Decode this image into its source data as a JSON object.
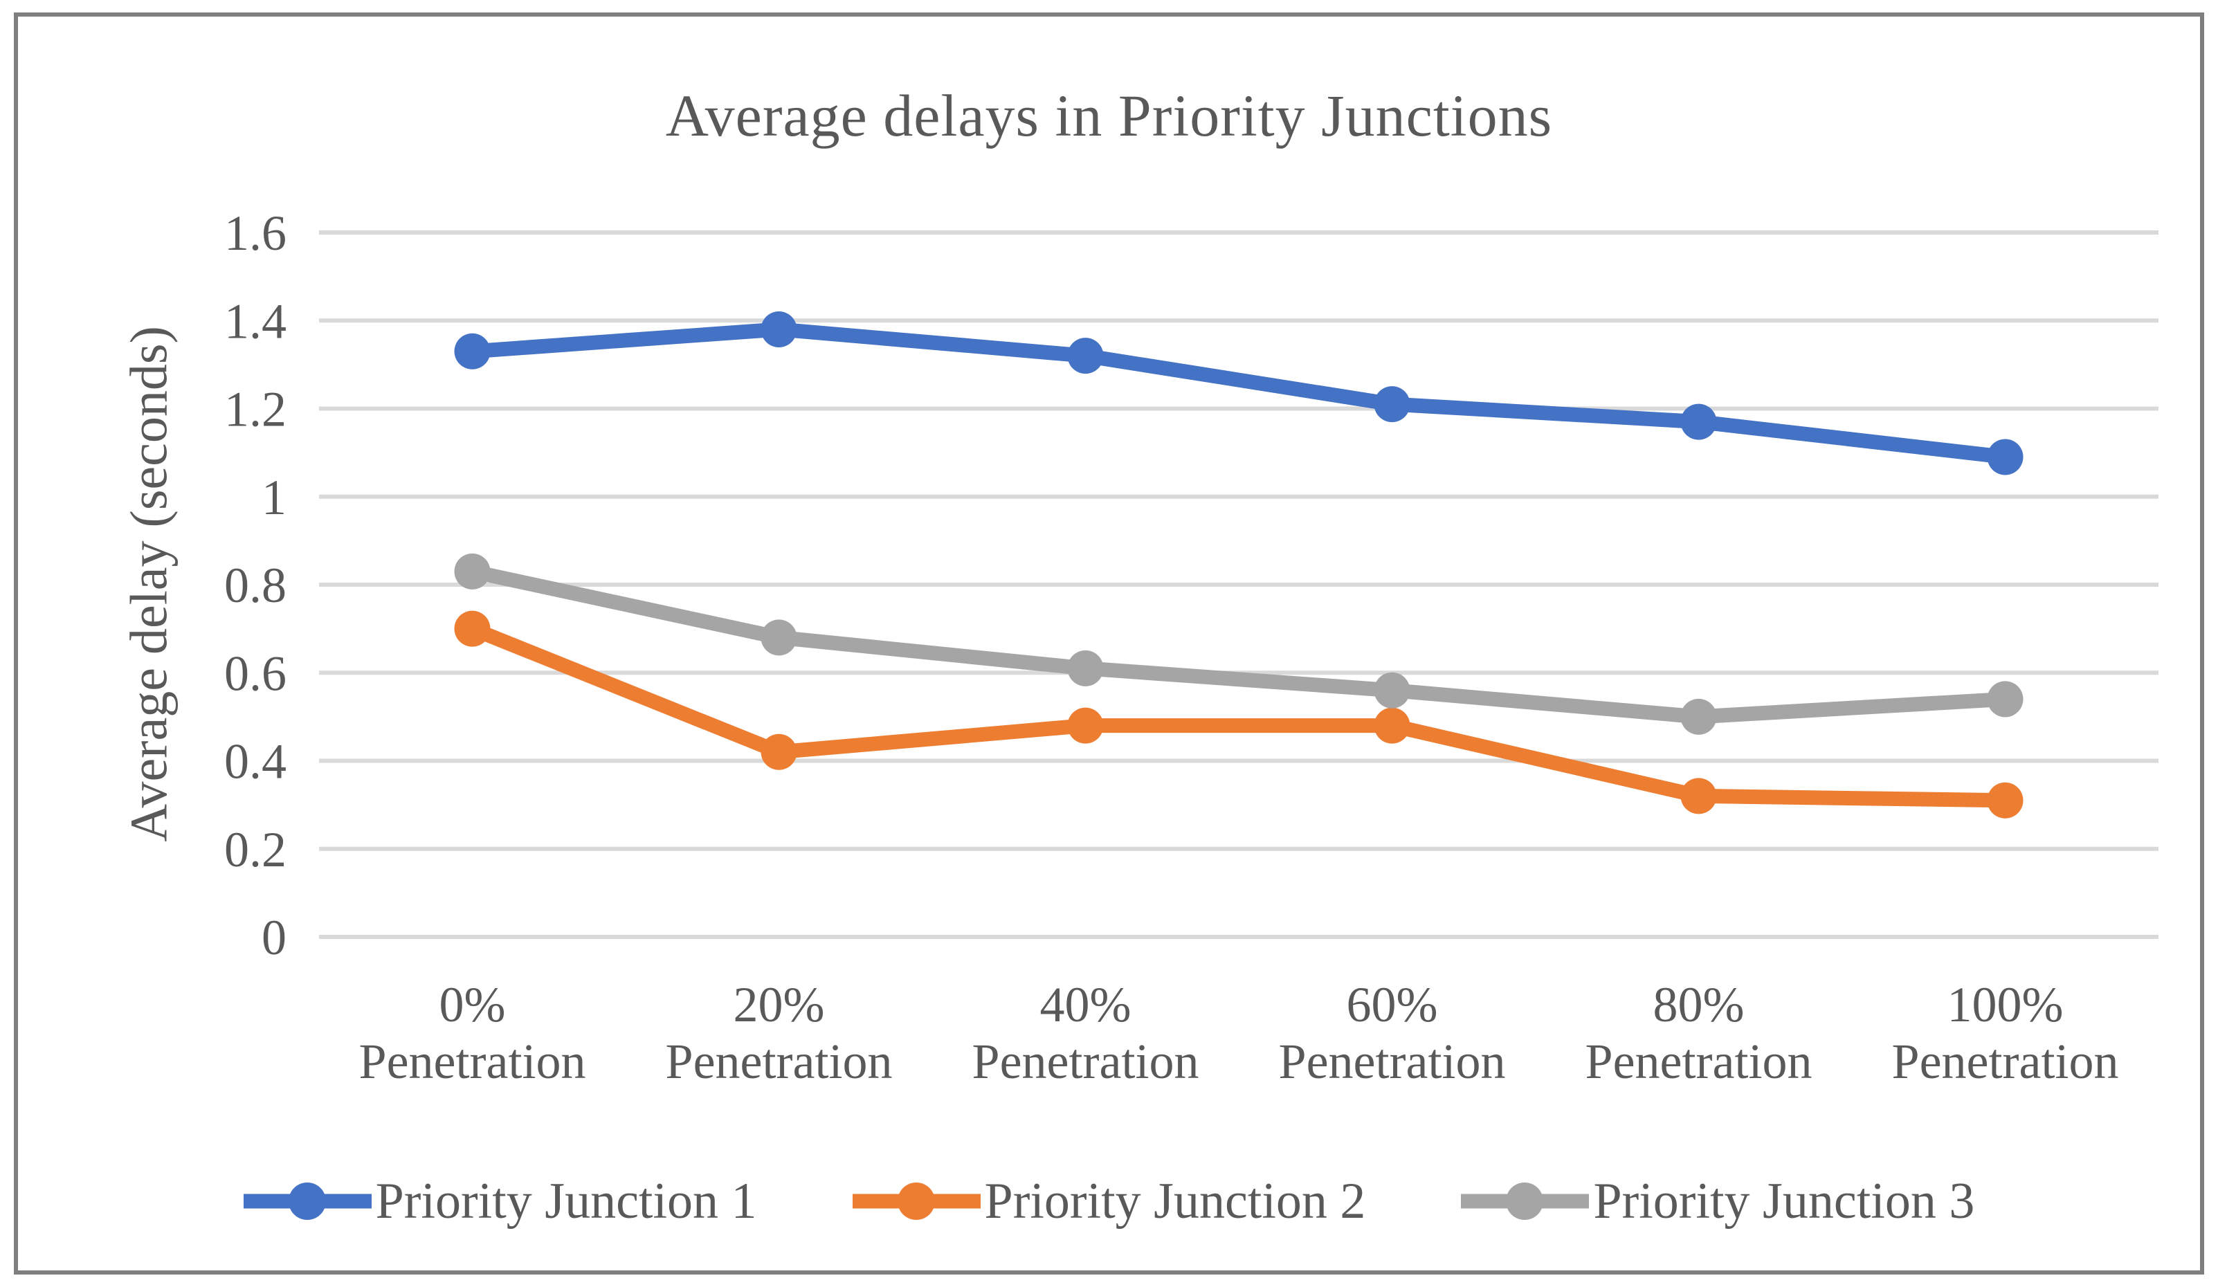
{
  "figure": {
    "background": "#FFFFFF",
    "border_color": "#7F7F7F"
  },
  "chart_data": {
    "type": "line",
    "title": "Average delays in Priority Junctions",
    "xlabel": "",
    "ylabel": "Average delay (seconds)",
    "ylim": [
      0,
      1.6
    ],
    "ytick_step": 0.2,
    "ytick_labels": [
      "0",
      "0.2",
      "0.4",
      "0.6",
      "0.8",
      "1",
      "1.2",
      "1.4",
      "1.6"
    ],
    "grid": true,
    "gridline_color": "#D9D9D9",
    "text_color": "#595959",
    "legend_position": "bottom",
    "categories": [
      "0% Penetration",
      "20% Penetration",
      "40% Penetration",
      "60% Penetration",
      "80% Penetration",
      "100% Penetration"
    ],
    "category_label_lines": [
      [
        "0%",
        "Penetration"
      ],
      [
        "20%",
        "Penetration"
      ],
      [
        "40%",
        "Penetration"
      ],
      [
        "60%",
        "Penetration"
      ],
      [
        "80%",
        "Penetration"
      ],
      [
        "100%",
        "Penetration"
      ]
    ],
    "series": [
      {
        "name": "Priority Junction 1",
        "color": "#4472C4",
        "values": [
          1.33,
          1.38,
          1.32,
          1.21,
          1.17,
          1.09
        ]
      },
      {
        "name": "Priority Junction 2",
        "color": "#ED7D31",
        "values": [
          0.7,
          0.42,
          0.48,
          0.48,
          0.32,
          0.31
        ]
      },
      {
        "name": "Priority Junction 3",
        "color": "#A5A5A5",
        "values": [
          0.83,
          0.68,
          0.61,
          0.56,
          0.5,
          0.54
        ]
      }
    ]
  }
}
